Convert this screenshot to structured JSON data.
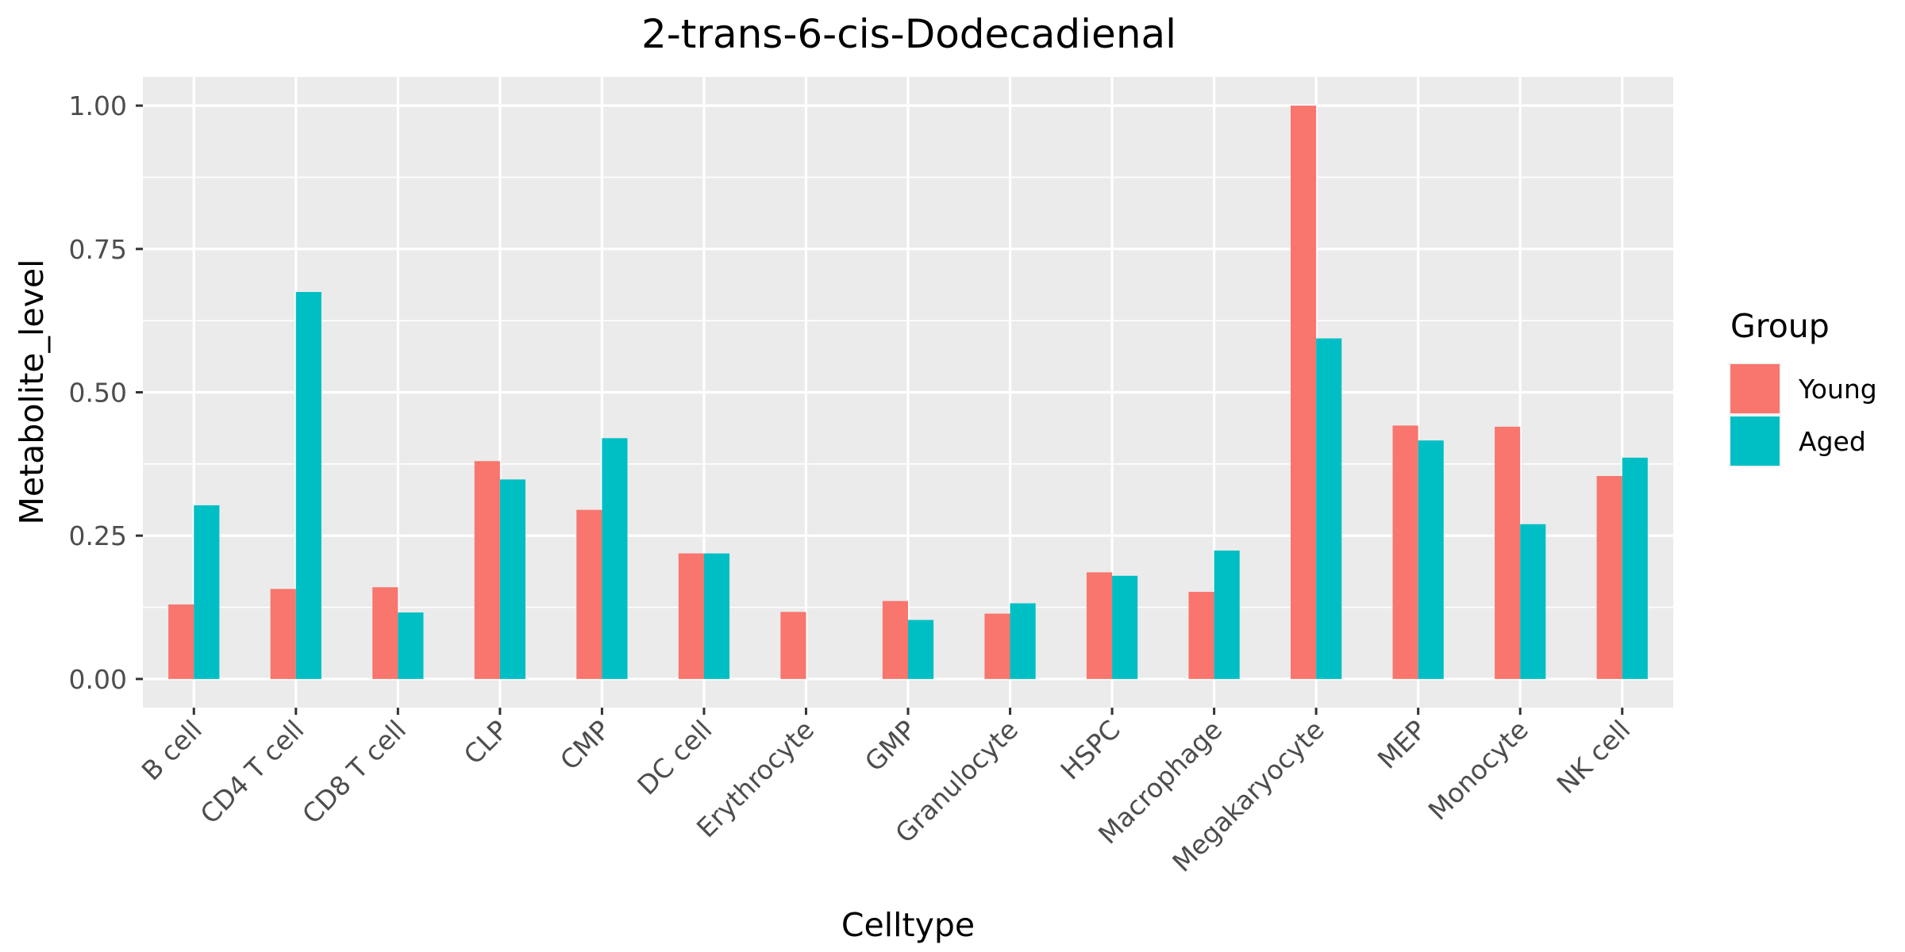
{
  "chart_data": {
    "type": "bar",
    "title": "2-trans-6-cis-Dodecadienal",
    "xlabel": "Celltype",
    "ylabel": "Metabolite_level",
    "ylim": [
      -0.05,
      1.05
    ],
    "yticks": [
      0.0,
      0.25,
      0.5,
      0.75,
      1.0
    ],
    "ytick_labels": [
      "0.00",
      "0.25",
      "0.50",
      "0.75",
      "1.00"
    ],
    "grid": true,
    "legend": {
      "title": "Group",
      "placement": "right"
    },
    "categories": [
      "B cell",
      "CD4 T cell",
      "CD8 T cell",
      "CLP",
      "CMP",
      "DC cell",
      "Erythrocyte",
      "GMP",
      "Granulocyte",
      "HSPC",
      "Macrophage",
      "Megakaryocyte",
      "MEP",
      "Monocyte",
      "NK cell"
    ],
    "series": [
      {
        "name": "Young",
        "color": "#F8766D",
        "values": [
          0.13,
          0.157,
          0.16,
          0.38,
          0.295,
          0.219,
          0.117,
          0.136,
          0.114,
          0.186,
          0.152,
          1.0,
          0.442,
          0.44,
          0.354
        ]
      },
      {
        "name": "Aged",
        "color": "#00BFC4",
        "values": [
          0.303,
          0.675,
          0.116,
          0.348,
          0.42,
          0.219,
          null,
          0.103,
          0.132,
          0.18,
          0.224,
          0.594,
          0.416,
          0.27,
          0.386
        ]
      }
    ]
  }
}
